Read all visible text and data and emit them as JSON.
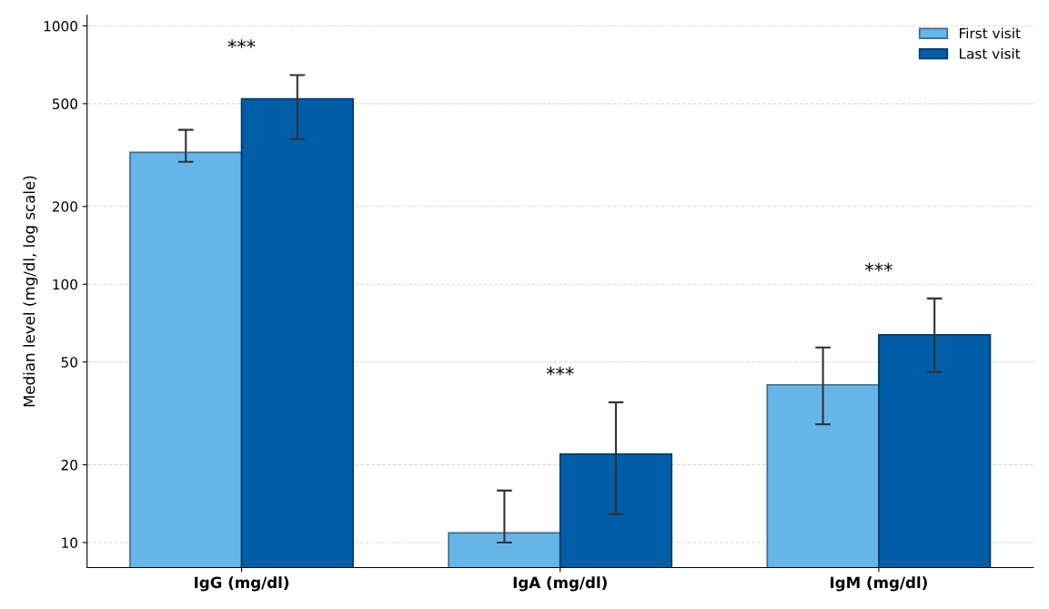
{
  "chart_data": {
    "type": "bar",
    "ylabel": "Median level (mg/dl, log scale)",
    "categories": [
      "IgG (mg/dl)",
      "IgA (mg/dl)",
      "IgM (mg/dl)"
    ],
    "series": [
      {
        "name": "First visit",
        "color": "#66b5e8",
        "values": [
          324,
          10.9,
          40.8
        ],
        "errors": [
          [
            298,
            396
          ],
          [
            10,
            15.9
          ],
          [
            28.7,
            56.9
          ]
        ]
      },
      {
        "name": "Last visit",
        "color": "#005da8",
        "values": [
          522,
          22,
          63.7
        ],
        "errors": [
          [
            365,
            645
          ],
          [
            12.9,
            34.9
          ],
          [
            45.7,
            88.1
          ]
        ]
      }
    ],
    "log": "y",
    "ylim": [
      8,
      1100
    ],
    "yticks": [
      10,
      20,
      50,
      100,
      200,
      500,
      1000
    ],
    "grid": "y",
    "legend": "top right",
    "annotations": [
      "***",
      "***",
      "***"
    ]
  }
}
